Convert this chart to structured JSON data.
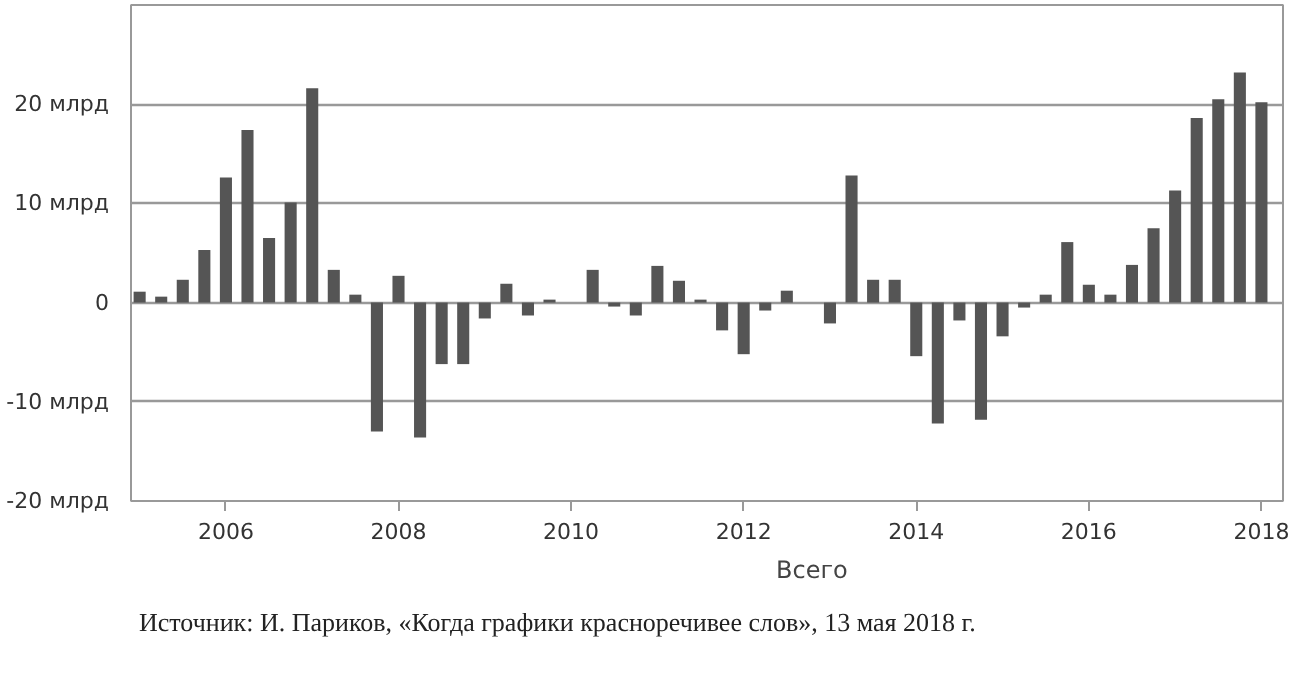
{
  "chart_data": {
    "type": "bar",
    "x": [
      2005.0,
      2005.25,
      2005.5,
      2005.75,
      2006.0,
      2006.25,
      2006.5,
      2006.75,
      2007.0,
      2007.25,
      2007.5,
      2007.75,
      2008.0,
      2008.25,
      2008.5,
      2008.75,
      2009.0,
      2009.25,
      2009.5,
      2009.75,
      2010.0,
      2010.25,
      2010.5,
      2010.75,
      2011.0,
      2011.25,
      2011.5,
      2011.75,
      2012.0,
      2012.25,
      2012.5,
      2012.75,
      2013.0,
      2013.25,
      2013.5,
      2013.75,
      2014.0,
      2014.25,
      2014.5,
      2014.75,
      2015.0,
      2015.25,
      2015.5,
      2015.75,
      2016.0,
      2016.25,
      2016.5,
      2016.75,
      2017.0,
      2017.25,
      2017.5,
      2017.75,
      2018.0
    ],
    "series": [
      {
        "name": "Всего",
        "color": "#555555",
        "values": [
          1.1,
          0.6,
          2.3,
          5.3,
          12.6,
          17.4,
          6.5,
          10.1,
          21.6,
          3.3,
          0.8,
          -13.0,
          2.7,
          -13.6,
          -6.2,
          -6.2,
          -1.6,
          1.9,
          -1.3,
          0.3,
          null,
          3.3,
          -0.4,
          -1.3,
          3.7,
          2.2,
          0.3,
          -2.8,
          -5.2,
          -0.8,
          1.2,
          null,
          -2.1,
          12.8,
          2.3,
          2.3,
          -5.4,
          -12.2,
          -1.8,
          -11.8,
          -3.4,
          -0.5,
          0.8,
          6.1,
          1.8,
          0.8,
          3.8,
          7.5,
          11.3,
          18.6,
          20.5,
          23.2,
          20.2
        ]
      }
    ],
    "xlim": [
      2004.9,
      2018.25
    ],
    "xticks": [
      2006,
      2008,
      2010,
      2012,
      2014,
      2016,
      2018
    ],
    "ylim": [
      -20,
      30
    ],
    "yticks": [
      {
        "value": -20,
        "label": "-20 млрд"
      },
      {
        "value": -10,
        "label": "-10 млрд"
      },
      0,
      {
        "value": 10,
        "label": "10 млрд"
      },
      {
        "value": 20,
        "label": "20 млрд"
      }
    ],
    "grid": "y",
    "legend": "bottom",
    "annotations": [
      "Источник: И. Париков, «Когда графики красноречивее слов», 13 мая 2018 г."
    ]
  }
}
